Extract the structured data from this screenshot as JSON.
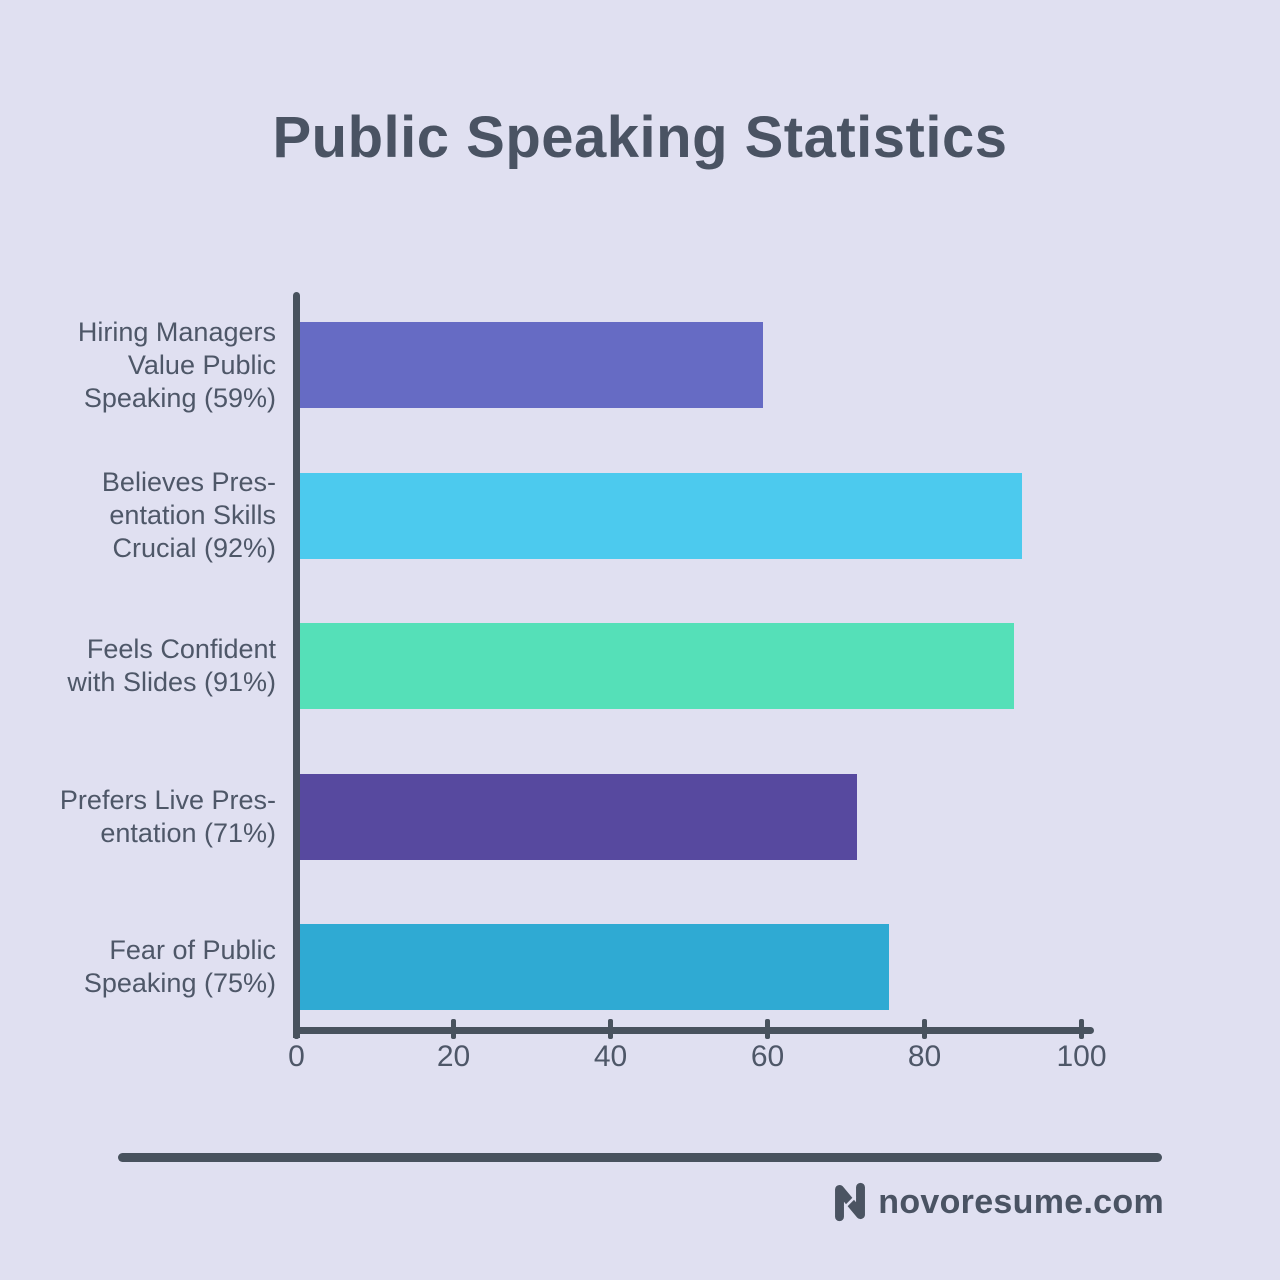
{
  "title": "Public Speaking Statistics",
  "chart_data": {
    "type": "bar",
    "orientation": "horizontal",
    "title": "Public Speaking Statistics",
    "categories": [
      "Hiring Managers Value Public Speaking (59%)",
      "Believes Presentation Skills Crucial (92%)",
      "Feels Confident with Slides (91%)",
      "Prefers Live Presentation (71%)",
      "Fear of Public Speaking (75%)"
    ],
    "category_lines": [
      [
        "Hiring Managers",
        "Value Public",
        "Speaking (59%)"
      ],
      [
        "Believes Pres-",
        "entation Skills",
        "Crucial (92%)"
      ],
      [
        "Feels Confident",
        "with Slides (91%)"
      ],
      [
        "Prefers Live Pres-",
        "entation (71%)"
      ],
      [
        "Fear of Public",
        "Speaking (75%)"
      ]
    ],
    "values": [
      59,
      92,
      91,
      71,
      75
    ],
    "bar_colors": [
      "#666bc4",
      "#4ccaee",
      "#55e0b8",
      "#57499f",
      "#2faad3"
    ],
    "xlabel": "",
    "ylabel": "",
    "xlim": [
      0,
      100
    ],
    "x_ticks": [
      0,
      20,
      40,
      60,
      80,
      100
    ],
    "grid": false,
    "legend": false
  },
  "colors": {
    "background": "#e0e0f1",
    "axis": "#48525e",
    "text": "#4e5768",
    "title": "#4a5363"
  },
  "footer": {
    "brand": "novoresume.com",
    "logo_icon": "novoresume-n-icon"
  }
}
